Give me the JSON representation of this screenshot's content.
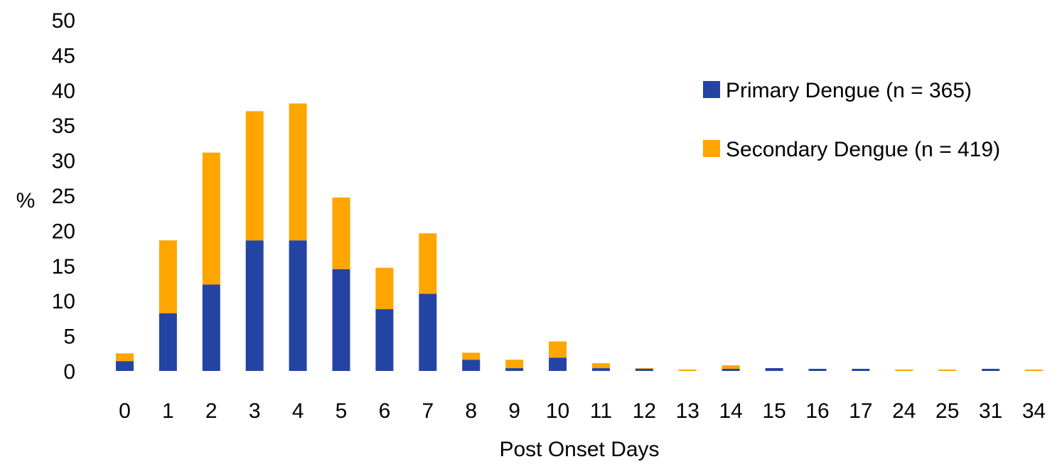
{
  "chart_data": {
    "type": "bar",
    "stacked": true,
    "title": "",
    "xlabel": "Post Onset Days",
    "ylabel": "%",
    "ylim": [
      0,
      50
    ],
    "yticks": [
      "0",
      "5",
      "10",
      "15",
      "20",
      "25",
      "30",
      "35",
      "40",
      "45",
      "50"
    ],
    "categories": [
      "0",
      "1",
      "2",
      "3",
      "4",
      "5",
      "6",
      "7",
      "8",
      "9",
      "10",
      "11",
      "12",
      "13",
      "14",
      "15",
      "16",
      "17",
      "24",
      "25",
      "31",
      "34"
    ],
    "series": [
      {
        "name": "Primary Dengue (n = 365)",
        "color": "#2444a4",
        "values": [
          1.4,
          8.2,
          12.3,
          18.6,
          18.6,
          14.5,
          8.8,
          11.0,
          1.6,
          0.4,
          1.9,
          0.4,
          0.3,
          0.0,
          0.3,
          0.4,
          0.3,
          0.3,
          0.0,
          0.0,
          0.3,
          0.0
        ]
      },
      {
        "name": "Secondary Dengue (n = 419)",
        "color": "#ffa500",
        "values": [
          1.1,
          10.4,
          18.8,
          18.4,
          19.5,
          10.2,
          5.9,
          8.6,
          1.0,
          1.2,
          2.3,
          0.7,
          0.1,
          0.2,
          0.5,
          0.0,
          0.0,
          0.0,
          0.2,
          0.2,
          0.0,
          0.2
        ]
      }
    ],
    "legend_position": "top-right",
    "grid": false
  }
}
